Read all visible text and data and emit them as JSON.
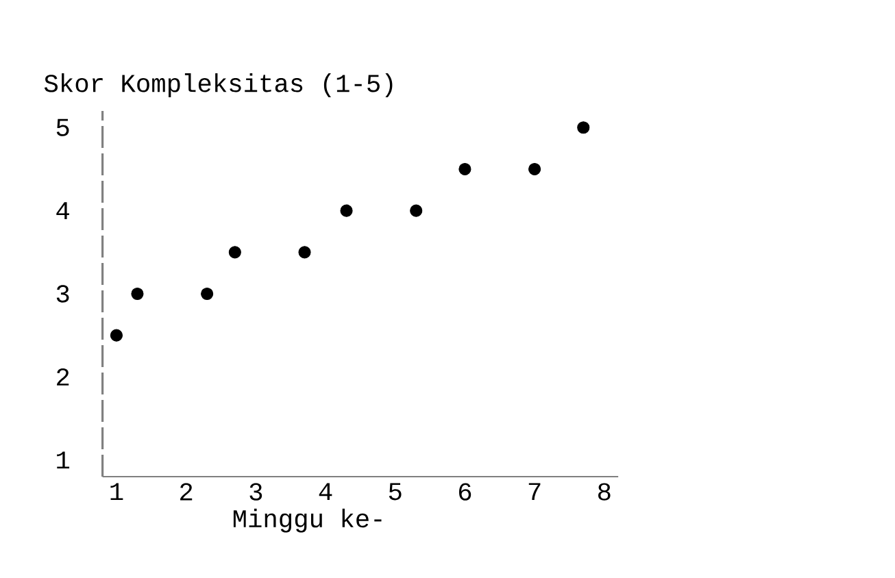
{
  "chart_data": {
    "type": "scatter",
    "ylabel": "Skor Kompleksitas (1-5)",
    "xlabel": "Minggu ke-",
    "x": [
      1,
      1.3,
      2.3,
      2.7,
      3.7,
      4.3,
      5.3,
      6,
      7,
      7.7
    ],
    "values": [
      2.5,
      3,
      3,
      3.5,
      3.5,
      4,
      4,
      4.5,
      4.5,
      5
    ],
    "color": "#000000",
    "marker": "circle",
    "grid": false,
    "xlim": [
      0.8,
      8.2
    ],
    "ylim": [
      0.8,
      5.2
    ],
    "xticks": [
      1,
      2,
      3,
      4,
      5,
      6,
      7,
      8
    ],
    "yticks": [
      1,
      2,
      3,
      4,
      5
    ]
  }
}
